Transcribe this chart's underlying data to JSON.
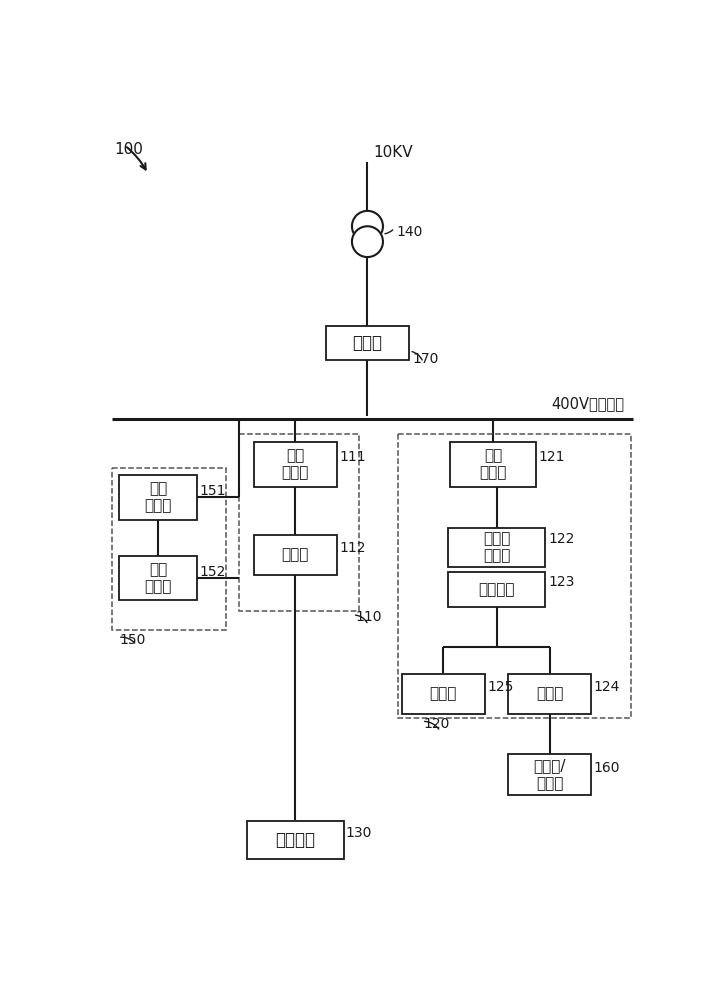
{
  "bg_color": "#ffffff",
  "line_color": "#1a1a1a",
  "box_edge_color": "#1a1a1a",
  "dashed_box_color": "#555555",
  "text_color": "#1a1a1a",
  "fig_width": 7.2,
  "fig_height": 10.0,
  "label_100": "100",
  "label_10kv": "10KV",
  "label_140": "140",
  "label_170": "170",
  "label_400v": "400V交流母线",
  "label_110": "110",
  "label_111": "111",
  "label_112": "112",
  "label_120": "120",
  "label_121": "121",
  "label_122": "122",
  "label_123": "123",
  "label_124": "124",
  "label_125": "125",
  "label_130": "130",
  "label_150": "150",
  "label_151": "151",
  "label_152": "152",
  "label_160": "160",
  "box_jiliang": "计量表",
  "box_diyi": "第一\n逆变器",
  "box_dianchi": "电池舱",
  "box_dier": "第二\n逆变器",
  "box_zhiqi": "制氢电\n解设备",
  "box_kongfen": "空分装置",
  "box_chuyang": "储氧罐",
  "box_chuh": "储氢罐",
  "box_ctrl": "控制模块",
  "box_dc_ctrl": "直流\n控制器",
  "box_dc_charge": "直流\n充电桩",
  "box_yasuoji": "压缩机/\n加氢枪"
}
